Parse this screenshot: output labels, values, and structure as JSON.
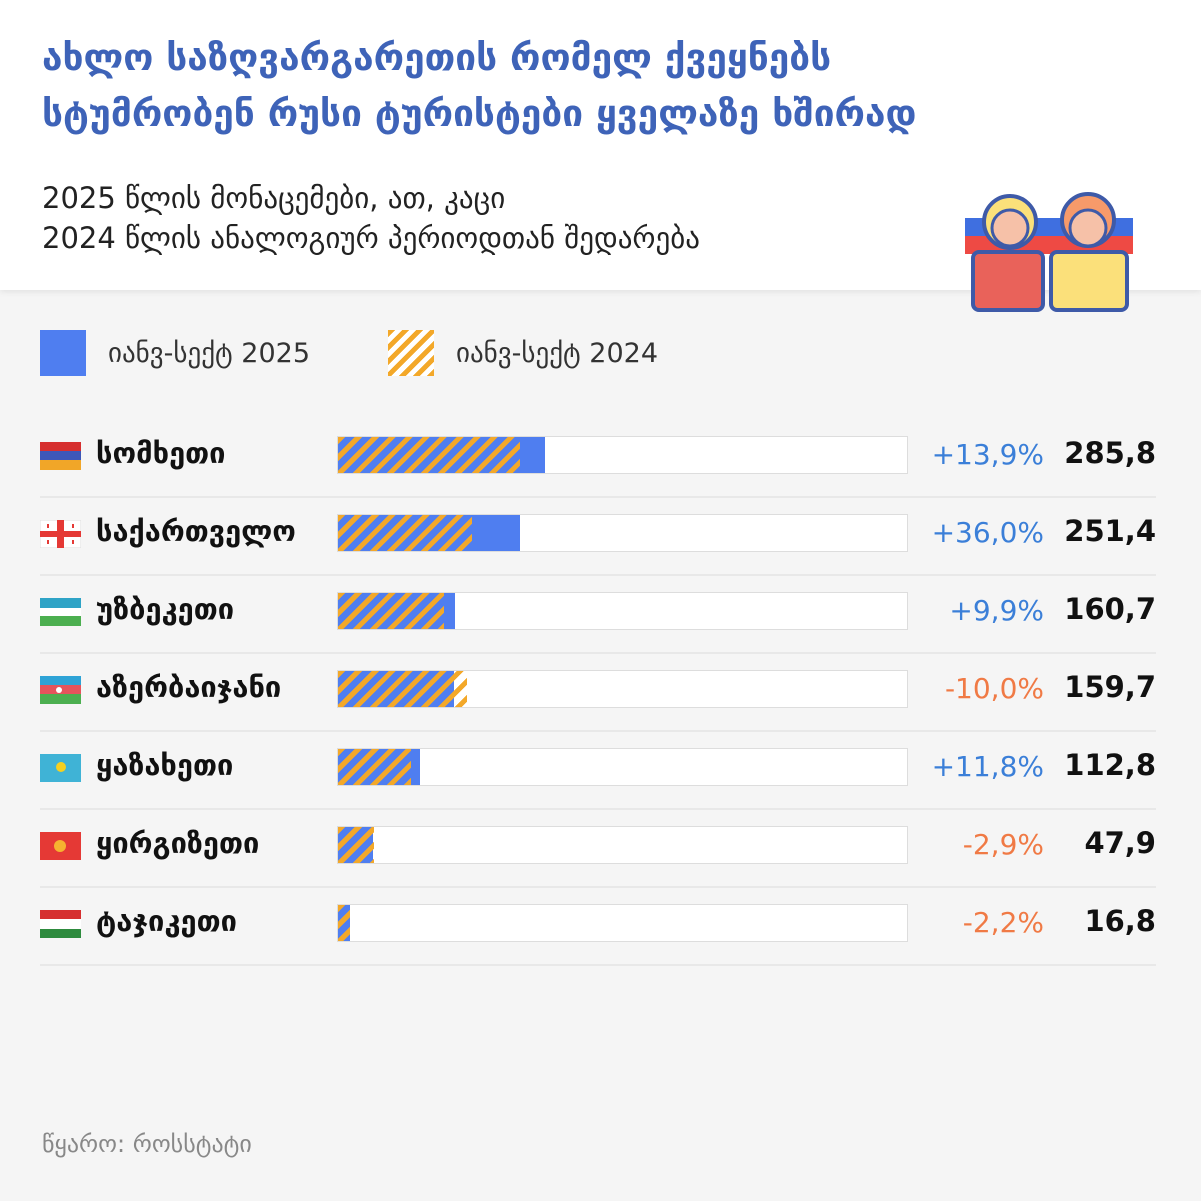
{
  "header": {
    "title_line1": "ახლო საზღვარგარეთის რომელ ქვეყნებს",
    "title_line2": "სტუმრობენ რუსი ტურისტები ყველაზე ხშირად",
    "subtitle_line1": "2025 წლის მონაცემები, ათ, კაცი",
    "subtitle_line2": "2024 წლის ანალოგიურ პერიოდთან შედარება"
  },
  "legend": {
    "s2025": "იანვ-სექტ 2025",
    "s2024": "იანვ-სექტ 2024"
  },
  "colors": {
    "blue": "#4f7ef0",
    "orange": "#f3a829",
    "positive": "#3b7fd8",
    "negative": "#f07a45",
    "title": "#3e63b8"
  },
  "chart_data": {
    "type": "bar",
    "orientation": "horizontal",
    "categories": [
      "სომხეთი",
      "საქართველო",
      "უზბეკეთი",
      "აზერბაიჯანი",
      "ყაზახეთი",
      "ყირგიზეთი",
      "ტაჯიკეთი"
    ],
    "series": [
      {
        "name": "იანვ-სექტ 2025",
        "values": [
          285.8,
          251.4,
          160.7,
          159.7,
          112.8,
          47.9,
          16.8
        ],
        "labels": [
          "285,8",
          "251,4",
          "160,7",
          "159,7",
          "112,8",
          "47,9",
          "16,8"
        ]
      },
      {
        "name": "იანვ-სექტ 2024",
        "values": [
          250.9,
          184.9,
          146.2,
          177.4,
          100.9,
          49.3,
          17.2
        ]
      }
    ],
    "change_labels": [
      "+13,9%",
      "+36,0%",
      "+9,9%",
      "-10,0%",
      "+11,8%",
      "-2,9%",
      "-2,2%"
    ],
    "flags": [
      "armenia",
      "georgia",
      "uzbekistan",
      "azerbaijan",
      "kazakhstan",
      "kyrgyzstan",
      "tajikistan"
    ],
    "xlim": [
      0,
      784
    ]
  },
  "source": "წყარო: როსსტატი"
}
